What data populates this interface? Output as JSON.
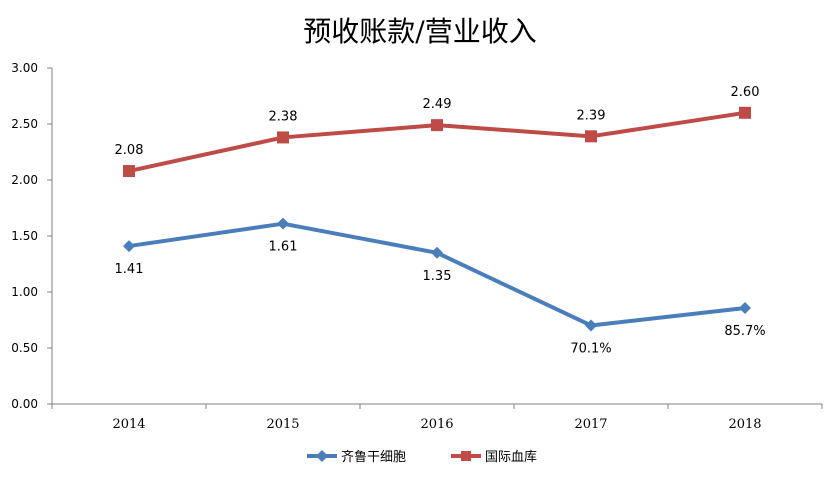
{
  "chart_data": {
    "type": "line",
    "title": "预收账款/营业收入",
    "xlabel": "",
    "ylabel": "",
    "categories": [
      "2014",
      "2015",
      "2016",
      "2017",
      "2018"
    ],
    "ylim": [
      0,
      3
    ],
    "yticks": [
      "0.00",
      "0.50",
      "1.00",
      "1.50",
      "2.00",
      "2.50",
      "3.00"
    ],
    "grid": false,
    "legend_position": "bottom",
    "series": [
      {
        "name": "齐鲁干细胞",
        "values": [
          1.41,
          1.61,
          1.35,
          0.701,
          0.857
        ],
        "labels": [
          "1.41",
          "1.61",
          "1.35",
          "70.1%",
          "85.7%"
        ],
        "color": "#4a7ebb",
        "marker": "diamond"
      },
      {
        "name": "国际血库",
        "values": [
          2.08,
          2.38,
          2.49,
          2.39,
          2.6
        ],
        "labels": [
          "2.08",
          "2.38",
          "2.49",
          "2.39",
          "2.60"
        ],
        "color": "#be4b48",
        "marker": "square"
      }
    ]
  }
}
